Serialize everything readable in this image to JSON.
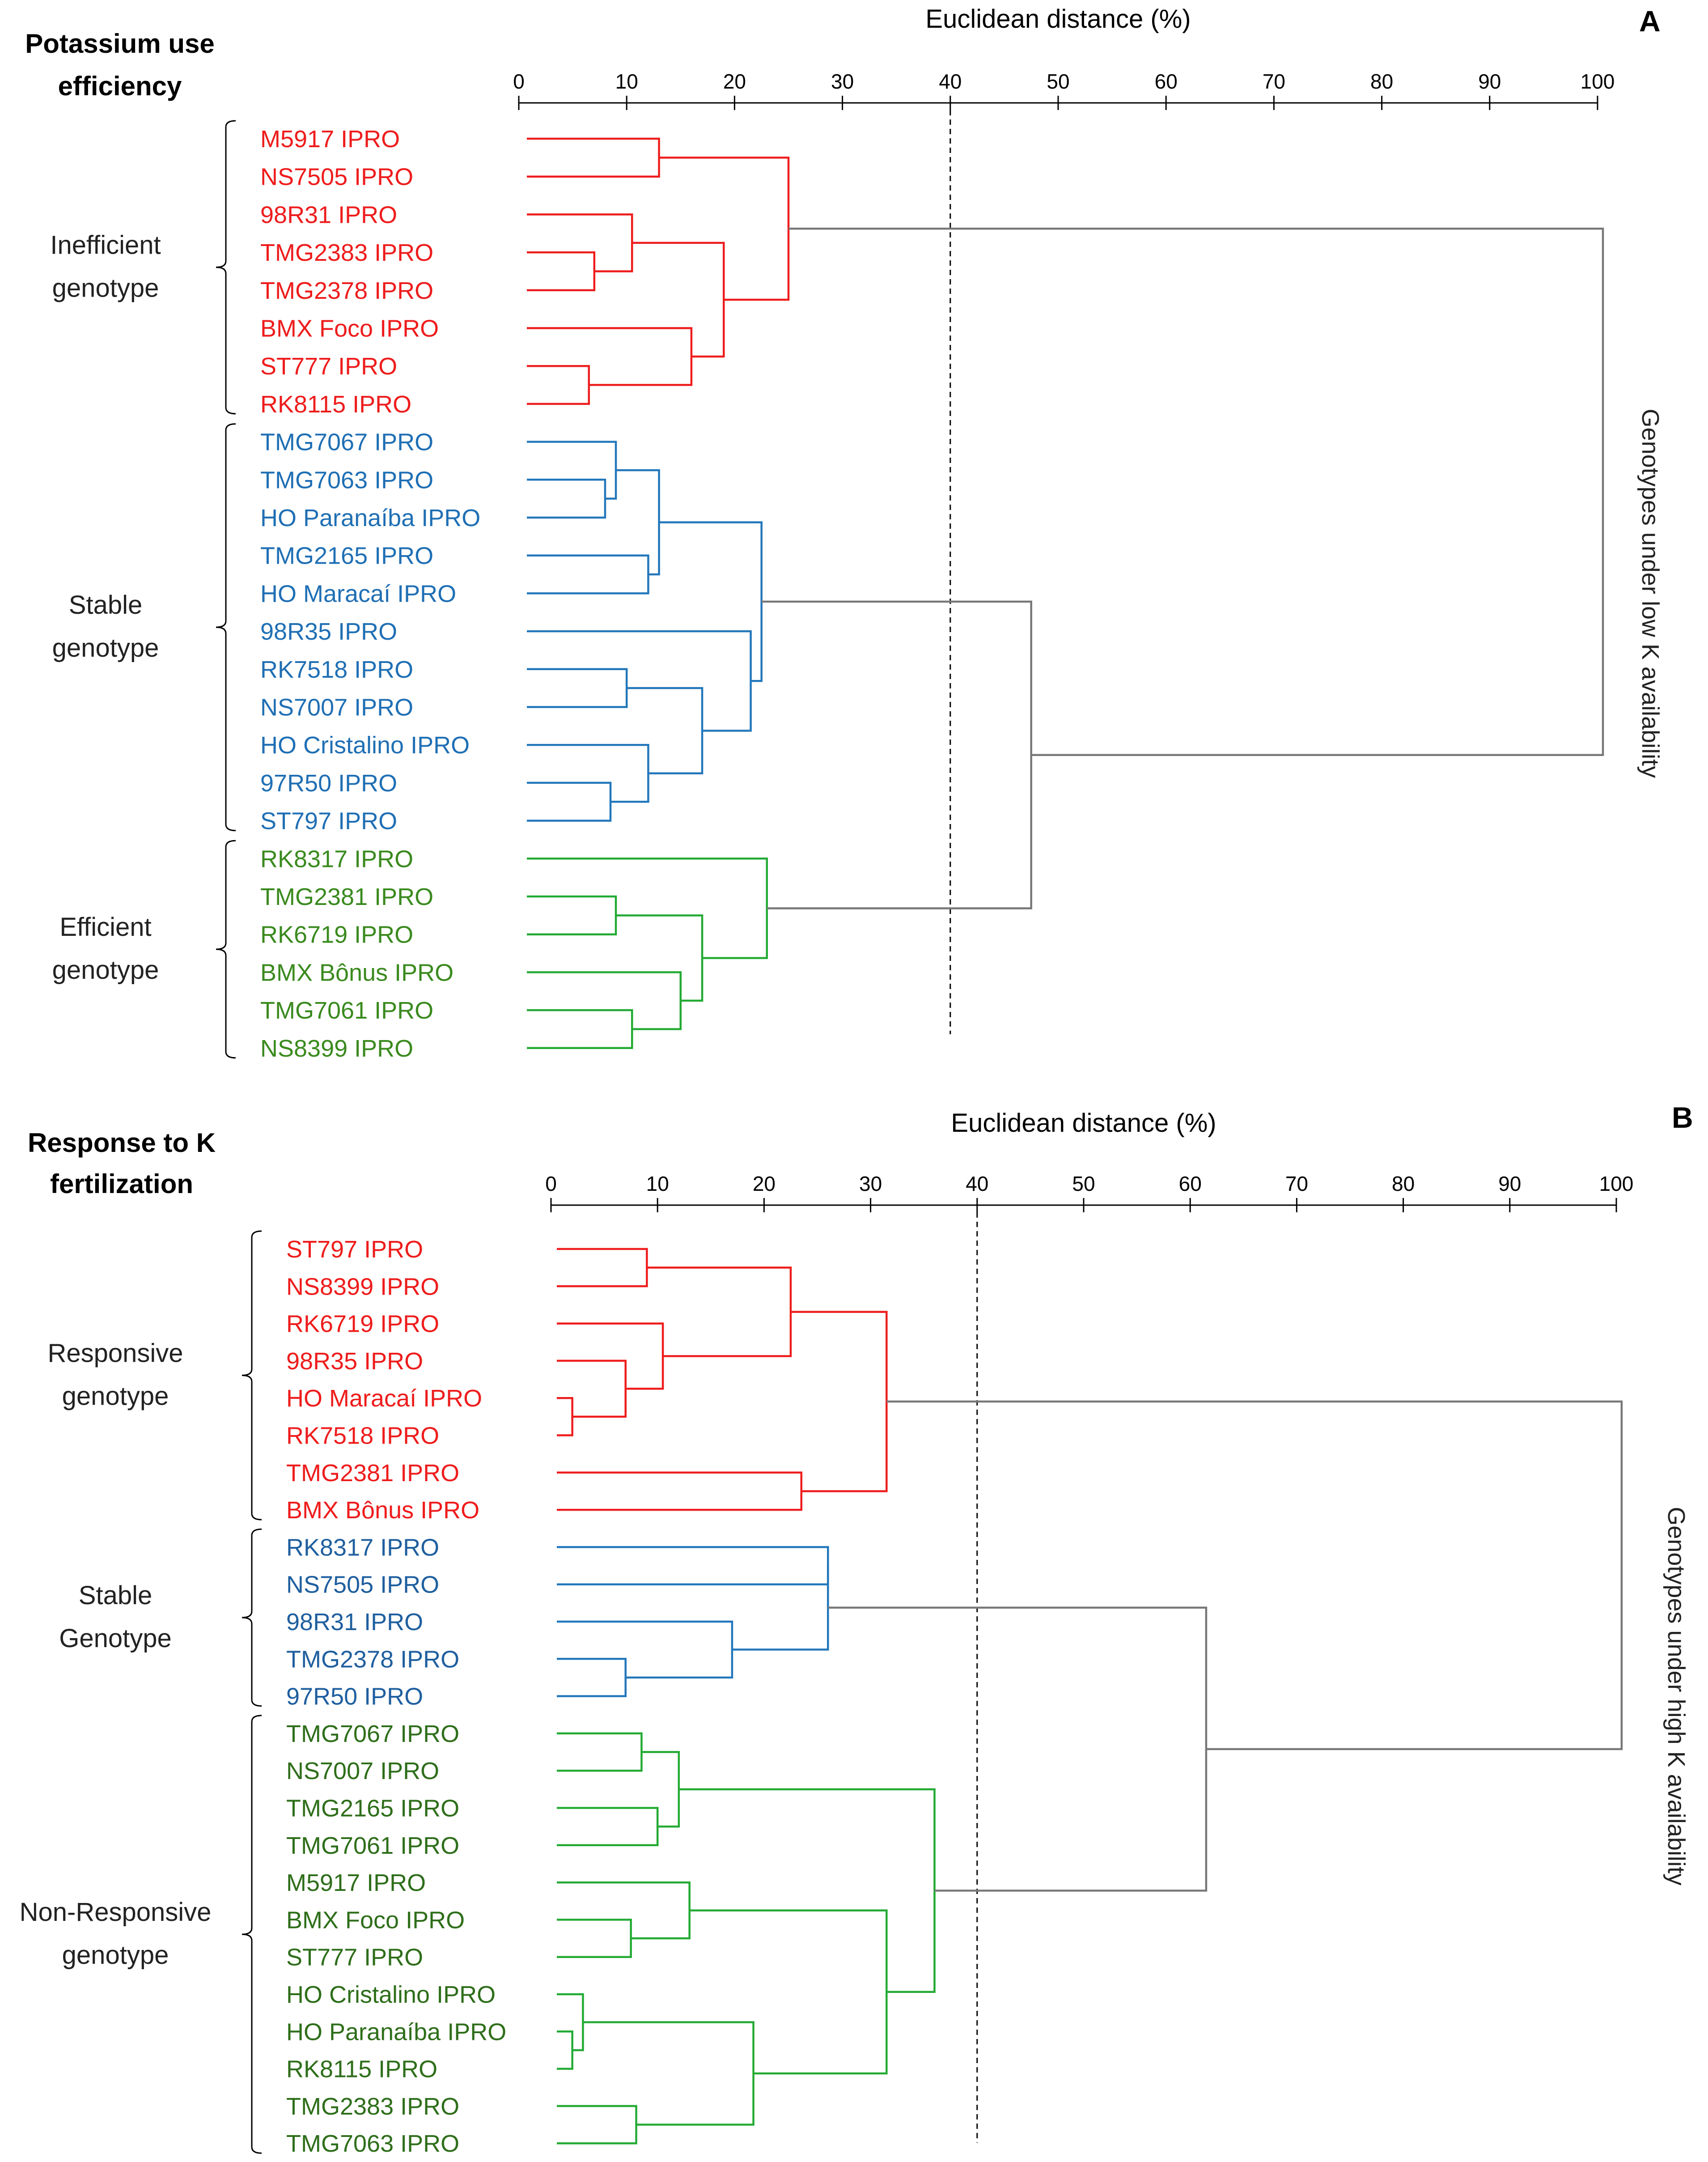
{
  "chart_data": [
    {
      "type": "dendrogram",
      "panel_letter": "A",
      "heading_lines": [
        "Potassium use",
        "efficiency"
      ],
      "xlabel": "Euclidean distance (%)",
      "xlim": [
        0,
        100
      ],
      "ticks": [
        "0",
        "10",
        "20",
        "30",
        "40",
        "50",
        "60",
        "70",
        "80",
        "90",
        "100"
      ],
      "cutoff_line": 40,
      "side_label": "Genotypes under low K availability",
      "colors": {
        "red": "#ee1c1c",
        "blue": "#2277bb",
        "green": "#22aa33",
        "gray": "#777777"
      },
      "label_colors": {
        "red": "#ee1c1c",
        "blue": "#1f6fb4",
        "green": "#3a8a1e"
      },
      "groups": [
        {
          "name_lines": [
            "Inefficient",
            "genotype"
          ],
          "color": "red",
          "first": 0,
          "last": 7
        },
        {
          "name_lines": [
            "Stable",
            "genotype"
          ],
          "color": "blue",
          "first": 8,
          "last": 18
        },
        {
          "name_lines": [
            "Efficient",
            "genotype"
          ],
          "color": "green",
          "first": 19,
          "last": 24
        }
      ],
      "leaves": [
        {
          "label": "M5917 IPRO",
          "color": "red"
        },
        {
          "label": "NS7505 IPRO",
          "color": "red"
        },
        {
          "label": "98R31 IPRO",
          "color": "red"
        },
        {
          "label": "TMG2383 IPRO",
          "color": "red"
        },
        {
          "label": "TMG2378 IPRO",
          "color": "red"
        },
        {
          "label": "BMX Foco IPRO",
          "color": "red"
        },
        {
          "label": "ST777 IPRO",
          "color": "red"
        },
        {
          "label": "RK8115 IPRO",
          "color": "red"
        },
        {
          "label": "TMG7067 IPRO",
          "color": "blue"
        },
        {
          "label": "TMG7063 IPRO",
          "color": "blue"
        },
        {
          "label": "HO Paranaíba IPRO",
          "color": "blue"
        },
        {
          "label": "TMG2165 IPRO",
          "color": "blue"
        },
        {
          "label": "HO Maracaí IPRO",
          "color": "blue"
        },
        {
          "label": "98R35 IPRO",
          "color": "blue"
        },
        {
          "label": "RK7518 IPRO",
          "color": "blue"
        },
        {
          "label": "NS7007 IPRO",
          "color": "blue"
        },
        {
          "label": "HO Cristalino IPRO",
          "color": "blue"
        },
        {
          "label": "97R50 IPRO",
          "color": "blue"
        },
        {
          "label": "ST797 IPRO",
          "color": "blue"
        },
        {
          "label": "RK8317 IPRO",
          "color": "green"
        },
        {
          "label": "TMG2381 IPRO",
          "color": "green"
        },
        {
          "label": "RK6719 IPRO",
          "color": "green"
        },
        {
          "label": "BMX Bônus IPRO",
          "color": "green"
        },
        {
          "label": "TMG7061 IPRO",
          "color": "green"
        },
        {
          "label": "NS8399 IPRO",
          "color": "green"
        }
      ],
      "merges": [
        {
          "a": "L0",
          "b": "L1",
          "h": 13,
          "color": "red"
        },
        {
          "a": "L3",
          "b": "L4",
          "h": 7,
          "color": "red"
        },
        {
          "a": "L2",
          "b": "N1",
          "h": 10.5,
          "color": "red"
        },
        {
          "a": "L6",
          "b": "L7",
          "h": 6.5,
          "color": "red"
        },
        {
          "a": "L5",
          "b": "N3",
          "h": 16,
          "color": "red"
        },
        {
          "a": "N2",
          "b": "N4",
          "h": 19,
          "color": "red"
        },
        {
          "a": "N0",
          "b": "N5",
          "h": 25,
          "color": "red"
        },
        {
          "a": "L9",
          "b": "L10",
          "h": 8,
          "color": "blue"
        },
        {
          "a": "L8",
          "b": "N7",
          "h": 9,
          "color": "blue"
        },
        {
          "a": "L11",
          "b": "L12",
          "h": 12,
          "color": "blue"
        },
        {
          "a": "N8",
          "b": "N9",
          "h": 13,
          "color": "blue"
        },
        {
          "a": "L14",
          "b": "L15",
          "h": 10,
          "color": "blue"
        },
        {
          "a": "L17",
          "b": "L18",
          "h": 8.5,
          "color": "blue"
        },
        {
          "a": "L16",
          "b": "N12",
          "h": 12,
          "color": "blue"
        },
        {
          "a": "N11",
          "b": "N13",
          "h": 17,
          "color": "blue"
        },
        {
          "a": "L13",
          "b": "N14",
          "h": 21.5,
          "color": "blue"
        },
        {
          "a": "N10",
          "b": "N15",
          "h": 22.5,
          "color": "blue"
        },
        {
          "a": "L20",
          "b": "L21",
          "h": 9,
          "color": "green"
        },
        {
          "a": "L23",
          "b": "L24",
          "h": 10.5,
          "color": "green"
        },
        {
          "a": "L22",
          "b": "N18",
          "h": 15,
          "color": "green"
        },
        {
          "a": "N17",
          "b": "N19",
          "h": 17,
          "color": "green"
        },
        {
          "a": "L19",
          "b": "N20",
          "h": 23,
          "color": "green"
        },
        {
          "a": "N16",
          "b": "N21",
          "h": 47.5,
          "color": "gray"
        },
        {
          "a": "N6",
          "b": "N22",
          "h": 100.5,
          "color": "gray"
        }
      ]
    },
    {
      "type": "dendrogram",
      "panel_letter": "B",
      "heading_lines": [
        "Response to K",
        "fertilization"
      ],
      "xlabel": "Euclidean distance (%)",
      "xlim": [
        0,
        100
      ],
      "ticks": [
        "0",
        "10",
        "20",
        "30",
        "40",
        "50",
        "60",
        "70",
        "80",
        "90",
        "100"
      ],
      "cutoff_line": 40,
      "side_label": "Genotypes under high K availability",
      "colors": {
        "red": "#ee1c1c",
        "blue": "#2277bb",
        "green": "#22aa33",
        "gray": "#777777"
      },
      "label_colors": {
        "red": "#ee1c1c",
        "blue": "#1f5f9f",
        "green": "#2e6e1a"
      },
      "groups": [
        {
          "name_lines": [
            "Responsive",
            "genotype"
          ],
          "color": "red",
          "first": 0,
          "last": 7
        },
        {
          "name_lines": [
            "Stable",
            "Genotype"
          ],
          "color": "blue",
          "first": 8,
          "last": 12
        },
        {
          "name_lines": [
            "Non-Responsive",
            "genotype"
          ],
          "color": "green",
          "first": 13,
          "last": 24
        }
      ],
      "leaves": [
        {
          "label": "ST797 IPRO",
          "color": "red"
        },
        {
          "label": "NS8399 IPRO",
          "color": "red"
        },
        {
          "label": "RK6719 IPRO",
          "color": "red"
        },
        {
          "label": "98R35 IPRO",
          "color": "red"
        },
        {
          "label": "HO Maracaí IPRO",
          "color": "red"
        },
        {
          "label": "RK7518 IPRO",
          "color": "red"
        },
        {
          "label": "TMG2381 IPRO",
          "color": "red"
        },
        {
          "label": "BMX Bônus IPRO",
          "color": "red"
        },
        {
          "label": "RK8317 IPRO",
          "color": "blue"
        },
        {
          "label": "NS7505 IPRO",
          "color": "blue"
        },
        {
          "label": "98R31 IPRO",
          "color": "blue"
        },
        {
          "label": "TMG2378 IPRO",
          "color": "blue"
        },
        {
          "label": "97R50 IPRO",
          "color": "blue"
        },
        {
          "label": "TMG7067 IPRO",
          "color": "green"
        },
        {
          "label": "NS7007 IPRO",
          "color": "green"
        },
        {
          "label": "TMG2165 IPRO",
          "color": "green"
        },
        {
          "label": "TMG7061 IPRO",
          "color": "green"
        },
        {
          "label": "M5917 IPRO",
          "color": "green"
        },
        {
          "label": "BMX Foco IPRO",
          "color": "green"
        },
        {
          "label": "ST777 IPRO",
          "color": "green"
        },
        {
          "label": "HO Cristalino IPRO",
          "color": "green"
        },
        {
          "label": "HO Paranaíba IPRO",
          "color": "green"
        },
        {
          "label": "RK8115 IPRO",
          "color": "green"
        },
        {
          "label": "TMG2383 IPRO",
          "color": "green"
        },
        {
          "label": "TMG7063 IPRO",
          "color": "green"
        }
      ],
      "merges": [
        {
          "a": "L0",
          "b": "L1",
          "h": 9,
          "color": "red"
        },
        {
          "a": "L4",
          "b": "L5",
          "h": 2,
          "color": "red"
        },
        {
          "a": "L3",
          "b": "N1",
          "h": 7,
          "color": "red"
        },
        {
          "a": "L2",
          "b": "N2",
          "h": 10.5,
          "color": "red"
        },
        {
          "a": "N0",
          "b": "N3",
          "h": 22.5,
          "color": "red"
        },
        {
          "a": "L6",
          "b": "L7",
          "h": 23.5,
          "color": "red"
        },
        {
          "a": "N4",
          "b": "N5",
          "h": 31.5,
          "color": "red"
        },
        {
          "a": "L11",
          "b": "L12",
          "h": 7,
          "color": "blue"
        },
        {
          "a": "L10",
          "b": "N7",
          "h": 17,
          "color": "blue"
        },
        {
          "a": "L8",
          "b": "L9",
          "h": 26,
          "color": "blue"
        },
        {
          "a": "N9",
          "b": "N8",
          "h": 26,
          "color": "blue"
        },
        {
          "a": "L13",
          "b": "L14",
          "h": 8.5,
          "color": "green"
        },
        {
          "a": "L15",
          "b": "L16",
          "h": 10,
          "color": "green"
        },
        {
          "a": "N11",
          "b": "N12",
          "h": 12,
          "color": "green"
        },
        {
          "a": "L18",
          "b": "L19",
          "h": 7.5,
          "color": "green"
        },
        {
          "a": "L17",
          "b": "N14",
          "h": 13,
          "color": "green"
        },
        {
          "a": "L21",
          "b": "L22",
          "h": 2,
          "color": "green"
        },
        {
          "a": "L20",
          "b": "N16",
          "h": 3,
          "color": "green"
        },
        {
          "a": "L23",
          "b": "L24",
          "h": 8,
          "color": "green"
        },
        {
          "a": "N17",
          "b": "N18",
          "h": 19,
          "color": "green"
        },
        {
          "a": "N15",
          "b": "N19",
          "h": 31.5,
          "color": "green"
        },
        {
          "a": "N13",
          "b": "N20",
          "h": 36,
          "color": "green"
        },
        {
          "a": "N10",
          "b": "N21",
          "h": 61.5,
          "color": "gray"
        },
        {
          "a": "N6",
          "b": "N22",
          "h": 100.5,
          "color": "gray"
        }
      ]
    }
  ]
}
